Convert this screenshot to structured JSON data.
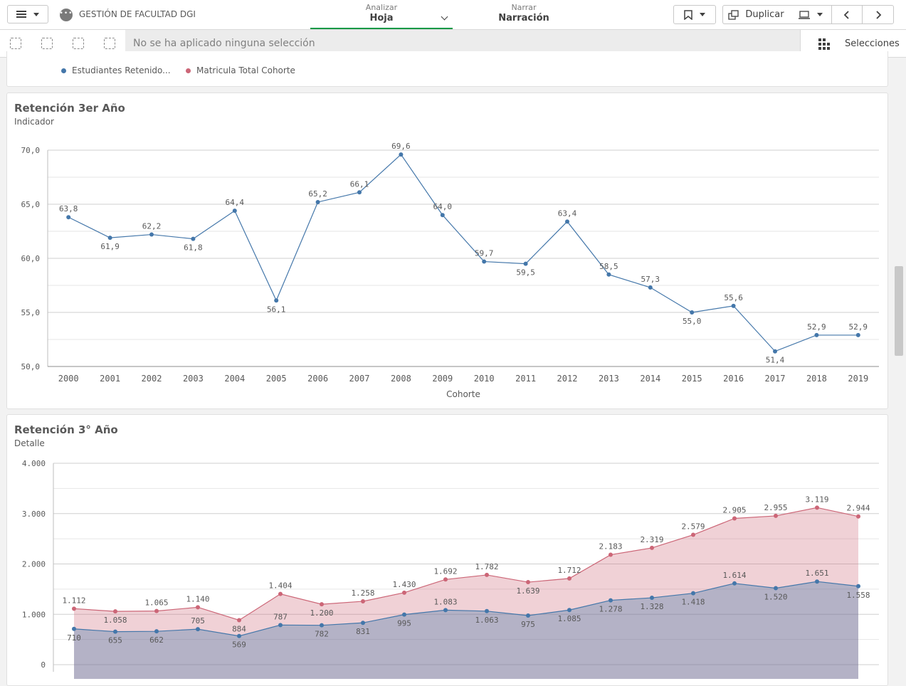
{
  "header": {
    "app_title": "GESTIÓN DE FACULTAD DGI",
    "tabs": [
      {
        "sub": "Analizar",
        "main": "Hoja"
      },
      {
        "sub": "Narrar",
        "main": "Narración"
      }
    ],
    "duplicate_label": "Duplicar"
  },
  "selection_bar": {
    "status_text": "No se ha aplicado ninguna selección",
    "selections_label": "Selecciones"
  },
  "legend": {
    "items": [
      {
        "label": "Estudiantes Retenido...",
        "color": "#4477aa"
      },
      {
        "label": "Matricula Total Cohorte",
        "color": "#cc6677"
      }
    ]
  },
  "chart1": {
    "title": "Retención 3er Año",
    "subtitle": "Indicador"
  },
  "chart2": {
    "title": "Retención 3° Año",
    "subtitle": "Detalle"
  },
  "chart_data": [
    {
      "type": "line",
      "title": "Retención 3er Año",
      "subtitle": "Indicador",
      "xlabel": "Cohorte",
      "ylabel": "",
      "ylim": [
        50,
        70
      ],
      "y_ticks": [
        "50,0",
        "55,0",
        "60,0",
        "65,0",
        "70,0"
      ],
      "categories": [
        "2000",
        "2001",
        "2002",
        "2003",
        "2004",
        "2005",
        "2006",
        "2007",
        "2008",
        "2009",
        "2010",
        "2011",
        "2012",
        "2013",
        "2014",
        "2015",
        "2016",
        "2017",
        "2018",
        "2019"
      ],
      "values": [
        63.8,
        61.9,
        62.2,
        61.8,
        64.4,
        56.1,
        65.2,
        66.1,
        69.6,
        64.0,
        59.7,
        59.5,
        63.4,
        58.5,
        57.3,
        55.0,
        55.6,
        51.4,
        52.9,
        52.9
      ],
      "labels": [
        "63,8",
        "61,9",
        "62,2",
        "61,8",
        "64,4",
        "56,1",
        "65,2",
        "66,1",
        "69,6",
        "64,0",
        "59,7",
        "59,5",
        "63,4",
        "58,5",
        "57,3",
        "55,0",
        "55,6",
        "51,4",
        "52,9",
        "52,9"
      ],
      "color": "#4477aa",
      "grid": true
    },
    {
      "type": "area",
      "title": "Retención 3° Año",
      "subtitle": "Detalle",
      "ylim": [
        0,
        4000
      ],
      "y_ticks": [
        "0",
        "1.000",
        "2.000",
        "3.000",
        "4.000"
      ],
      "series": [
        {
          "name": "Matricula Total Cohorte",
          "color": "#cc6677",
          "values": [
            1112,
            1058,
            1065,
            1140,
            884,
            1404,
            1200,
            1258,
            1430,
            1692,
            1782,
            1639,
            1712,
            2183,
            2319,
            2579,
            2905,
            2955,
            3119,
            2944
          ],
          "labels": [
            "1.112",
            "1.058",
            "1.065",
            "1.140",
            "884",
            "1.404",
            "1.200",
            "1.258",
            "1.430",
            "1.692",
            "1.782",
            "1.639",
            "1.712",
            "2.183",
            "2.319",
            "2.579",
            "2.905",
            "2.955",
            "3.119",
            "2.944"
          ]
        },
        {
          "name": "Estudiantes Retenido...",
          "color": "#4477aa",
          "values": [
            710,
            655,
            662,
            705,
            569,
            787,
            782,
            831,
            995,
            1083,
            1063,
            975,
            1085,
            1278,
            1328,
            1418,
            1614,
            1520,
            1651,
            1558
          ],
          "labels": [
            "710",
            "655",
            "662",
            "705",
            "569",
            "787",
            "782",
            "831",
            "995",
            "1.083",
            "1.063",
            "975",
            "1.085",
            "1.278",
            "1.328",
            "1.418",
            "1.614",
            "1.520",
            "1.651",
            "1.558"
          ]
        }
      ],
      "grid": true
    }
  ]
}
